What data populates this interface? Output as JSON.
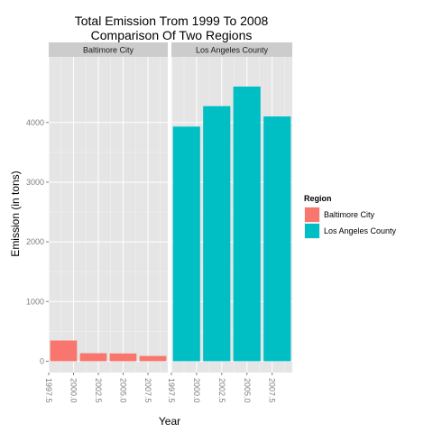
{
  "chart_data": {
    "type": "bar",
    "title_lines": [
      "Total Emission Trom 1999 To 2008",
      "Comparison Of Two Regions"
    ],
    "xlabel": "Year",
    "ylabel": "Emission (in tons)",
    "xlim": [
      1997.5,
      2009.5
    ],
    "ylim": [
      -190,
      5100
    ],
    "x_ticks": [
      "1997.5",
      "2000.0",
      "2002.5",
      "2005.0",
      "2007.5"
    ],
    "y_ticks": [
      0,
      1000,
      2000,
      3000,
      4000
    ],
    "bar_width_years": 2.7,
    "legend": {
      "title": "Region",
      "placement": "right",
      "entries": [
        "Baltimore City",
        "Los Angeles County"
      ]
    },
    "facets": [
      {
        "name": "Baltimore City",
        "color": "#F8766D",
        "x": [
          1999,
          2002,
          2005,
          2008
        ],
        "values": [
          347,
          134,
          130,
          88
        ]
      },
      {
        "name": "Los Angeles County",
        "color": "#00BFC4",
        "x": [
          1999,
          2002,
          2005,
          2008
        ],
        "values": [
          3931,
          4274,
          4602,
          4101
        ]
      }
    ],
    "grid": true
  }
}
